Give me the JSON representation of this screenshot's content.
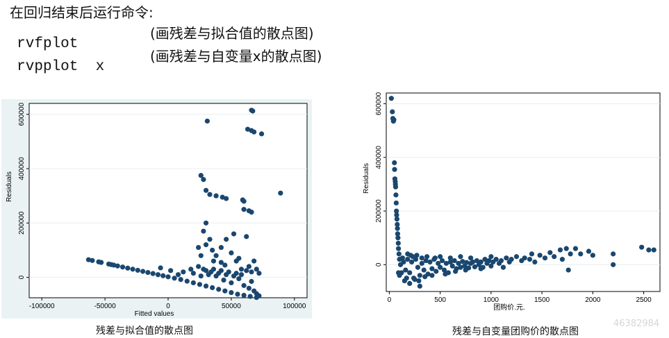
{
  "header": {
    "instruction": "在回归结束后运行命令:",
    "commands": [
      {
        "code": "rvfplot",
        "note": "(画残差与拟合值的散点图)"
      },
      {
        "code": "rvpplot  x",
        "note": "(画残差与自变量x的散点图)"
      }
    ]
  },
  "charts": {
    "left": {
      "caption": "残差与拟合值的散点图"
    },
    "right": {
      "caption": "残差与自变量团购价的散点图",
      "watermark": "46382984"
    }
  },
  "chart_data": [
    {
      "type": "scatter",
      "xlabel": "Fitted values",
      "ylabel": "Residuals",
      "xlim": [
        -110000,
        110000
      ],
      "ylim": [
        -75000,
        640000
      ],
      "xticks": [
        -100000,
        -50000,
        0,
        50000,
        100000
      ],
      "yticks": [
        0,
        200000,
        400000,
        600000
      ],
      "grid": true,
      "marker_color": "#1a476f",
      "points": [
        [
          -63000,
          65000
        ],
        [
          -60000,
          62000
        ],
        [
          -55000,
          57000
        ],
        [
          -53000,
          55000
        ],
        [
          -47000,
          49000
        ],
        [
          -45000,
          47000
        ],
        [
          -43000,
          45000
        ],
        [
          -40000,
          42000
        ],
        [
          -36000,
          38000
        ],
        [
          -32000,
          34000
        ],
        [
          -28000,
          30000
        ],
        [
          -24000,
          26000
        ],
        [
          -20000,
          22000
        ],
        [
          -16000,
          18000
        ],
        [
          -12000,
          14000
        ],
        [
          -8000,
          10000
        ],
        [
          -4000,
          6000
        ],
        [
          0,
          2000
        ],
        [
          5000,
          -3000
        ],
        [
          10000,
          -8000
        ],
        [
          15000,
          -14000
        ],
        [
          20000,
          -20000
        ],
        [
          25000,
          -26000
        ],
        [
          30000,
          -32000
        ],
        [
          35000,
          -38000
        ],
        [
          40000,
          -44000
        ],
        [
          45000,
          -50000
        ],
        [
          50000,
          -56000
        ],
        [
          55000,
          -62000
        ],
        [
          60000,
          -66000
        ],
        [
          65000,
          -70000
        ],
        [
          70000,
          -74000
        ],
        [
          -6000,
          35000
        ],
        [
          2000,
          25000
        ],
        [
          8000,
          10000
        ],
        [
          12000,
          20000
        ],
        [
          18000,
          30000
        ],
        [
          20000,
          15000
        ],
        [
          24000,
          40000
        ],
        [
          26000,
          5000
        ],
        [
          28000,
          30000
        ],
        [
          30000,
          25000
        ],
        [
          32000,
          10000
        ],
        [
          34000,
          20000
        ],
        [
          36000,
          30000
        ],
        [
          38000,
          5000
        ],
        [
          40000,
          15000
        ],
        [
          42000,
          25000
        ],
        [
          44000,
          -10000
        ],
        [
          46000,
          10000
        ],
        [
          48000,
          20000
        ],
        [
          50000,
          -20000
        ],
        [
          52000,
          5000
        ],
        [
          54000,
          15000
        ],
        [
          56000,
          -5000
        ],
        [
          58000,
          10000
        ],
        [
          60000,
          -30000
        ],
        [
          62000,
          25000
        ],
        [
          64000,
          -40000
        ],
        [
          66000,
          -15000
        ],
        [
          68000,
          -50000
        ],
        [
          70000,
          -60000
        ],
        [
          72000,
          15000
        ],
        [
          72000,
          -68000
        ],
        [
          24000,
          110000
        ],
        [
          26000,
          80000
        ],
        [
          28000,
          170000
        ],
        [
          30000,
          120000
        ],
        [
          30000,
          200000
        ],
        [
          33000,
          140000
        ],
        [
          35000,
          100000
        ],
        [
          38000,
          80000
        ],
        [
          42000,
          110000
        ],
        [
          46000,
          140000
        ],
        [
          50000,
          90000
        ],
        [
          52000,
          160000
        ],
        [
          54000,
          60000
        ],
        [
          56000,
          70000
        ],
        [
          58000,
          30000
        ],
        [
          60000,
          250000
        ],
        [
          62000,
          150000
        ],
        [
          64000,
          40000
        ],
        [
          66000,
          20000
        ],
        [
          68000,
          60000
        ],
        [
          70000,
          30000
        ],
        [
          45000,
          45000
        ],
        [
          36000,
          60000
        ],
        [
          42000,
          55000
        ],
        [
          26000,
          375000
        ],
        [
          28000,
          360000
        ],
        [
          30000,
          320000
        ],
        [
          33000,
          305000
        ],
        [
          38000,
          300000
        ],
        [
          43000,
          295000
        ],
        [
          46000,
          290000
        ],
        [
          59000,
          285000
        ],
        [
          60000,
          280000
        ],
        [
          64000,
          245000
        ],
        [
          66000,
          240000
        ],
        [
          89000,
          310000
        ],
        [
          31000,
          575000
        ],
        [
          63000,
          545000
        ],
        [
          66000,
          540000
        ],
        [
          68000,
          535000
        ],
        [
          74000,
          528000
        ],
        [
          66000,
          615000
        ],
        [
          67000,
          612000
        ]
      ]
    },
    {
      "type": "scatter",
      "xlabel": "团购价.元.",
      "ylabel": "Residuals",
      "xlim": [
        -30,
        2660
      ],
      "ylim": [
        -100000,
        640000
      ],
      "xticks": [
        0,
        500,
        1000,
        1500,
        2000,
        2500
      ],
      "yticks": [
        0,
        200000,
        400000,
        600000
      ],
      "grid": true,
      "marker_color": "#1a476f",
      "points": [
        [
          20,
          620000
        ],
        [
          30,
          570000
        ],
        [
          35,
          545000
        ],
        [
          40,
          535000
        ],
        [
          45,
          540000
        ],
        [
          50,
          380000
        ],
        [
          52,
          355000
        ],
        [
          55,
          320000
        ],
        [
          58,
          310000
        ],
        [
          60,
          300000
        ],
        [
          62,
          290000
        ],
        [
          65,
          260000
        ],
        [
          68,
          230000
        ],
        [
          70,
          200000
        ],
        [
          72,
          185000
        ],
        [
          75,
          170000
        ],
        [
          78,
          150000
        ],
        [
          80,
          135000
        ],
        [
          82,
          115000
        ],
        [
          85,
          100000
        ],
        [
          88,
          80000
        ],
        [
          90,
          60000
        ],
        [
          95,
          40000
        ],
        [
          100,
          20000
        ],
        [
          110,
          0
        ],
        [
          90,
          -30000
        ],
        [
          100,
          -40000
        ],
        [
          120,
          -30000
        ],
        [
          140,
          10000
        ],
        [
          160,
          -20000
        ],
        [
          180,
          20000
        ],
        [
          200,
          -30000
        ],
        [
          220,
          10000
        ],
        [
          240,
          -50000
        ],
        [
          260,
          20000
        ],
        [
          280,
          -10000
        ],
        [
          300,
          -40000
        ],
        [
          320,
          5000
        ],
        [
          340,
          -20000
        ],
        [
          360,
          15000
        ],
        [
          380,
          -35000
        ],
        [
          400,
          10000
        ],
        [
          420,
          -15000
        ],
        [
          440,
          20000
        ],
        [
          460,
          -25000
        ],
        [
          480,
          5000
        ],
        [
          500,
          -10000
        ],
        [
          520,
          15000
        ],
        [
          540,
          -20000
        ],
        [
          560,
          5000
        ],
        [
          580,
          -30000
        ],
        [
          600,
          10000
        ],
        [
          620,
          -5000
        ],
        [
          640,
          15000
        ],
        [
          660,
          -15000
        ],
        [
          680,
          5000
        ],
        [
          700,
          -10000
        ],
        [
          720,
          12000
        ],
        [
          740,
          -5000
        ],
        [
          760,
          8000
        ],
        [
          780,
          -12000
        ],
        [
          800,
          5000
        ],
        [
          820,
          10000
        ],
        [
          840,
          -8000
        ],
        [
          860,
          15000
        ],
        [
          880,
          0
        ],
        [
          900,
          10000
        ],
        [
          920,
          -10000
        ],
        [
          940,
          20000
        ],
        [
          960,
          5000
        ],
        [
          980,
          15000
        ],
        [
          1000,
          -5000
        ],
        [
          1020,
          10000
        ],
        [
          1050,
          20000
        ],
        [
          1080,
          5000
        ],
        [
          1100,
          15000
        ],
        [
          1120,
          -10000
        ],
        [
          1150,
          25000
        ],
        [
          1180,
          10000
        ],
        [
          1200,
          20000
        ],
        [
          1250,
          30000
        ],
        [
          1300,
          15000
        ],
        [
          1330,
          25000
        ],
        [
          1380,
          20000
        ],
        [
          1400,
          40000
        ],
        [
          1430,
          10000
        ],
        [
          1480,
          35000
        ],
        [
          1530,
          25000
        ],
        [
          1580,
          45000
        ],
        [
          1620,
          30000
        ],
        [
          1680,
          55000
        ],
        [
          1700,
          20000
        ],
        [
          1740,
          60000
        ],
        [
          1760,
          -20000
        ],
        [
          1780,
          40000
        ],
        [
          1830,
          60000
        ],
        [
          1880,
          40000
        ],
        [
          1960,
          50000
        ],
        [
          2000,
          35000
        ],
        [
          2200,
          40000
        ],
        [
          2200,
          0
        ],
        [
          2480,
          65000
        ],
        [
          2550,
          55000
        ],
        [
          2600,
          55000
        ],
        [
          150,
          -60000
        ],
        [
          200,
          -70000
        ],
        [
          250,
          -55000
        ],
        [
          300,
          -80000
        ],
        [
          350,
          -45000
        ],
        [
          180,
          40000
        ],
        [
          230,
          30000
        ],
        [
          270,
          35000
        ],
        [
          320,
          25000
        ],
        [
          370,
          30000
        ],
        [
          130,
          25000
        ],
        [
          170,
          -50000
        ],
        [
          210,
          35000
        ],
        [
          290,
          -60000
        ],
        [
          420,
          -40000
        ],
        [
          450,
          25000
        ],
        [
          500,
          30000
        ],
        [
          550,
          -35000
        ],
        [
          600,
          25000
        ],
        [
          650,
          -25000
        ],
        [
          700,
          30000
        ],
        [
          750,
          -20000
        ],
        [
          800,
          25000
        ],
        [
          900,
          -15000
        ],
        [
          1000,
          30000
        ]
      ]
    }
  ]
}
